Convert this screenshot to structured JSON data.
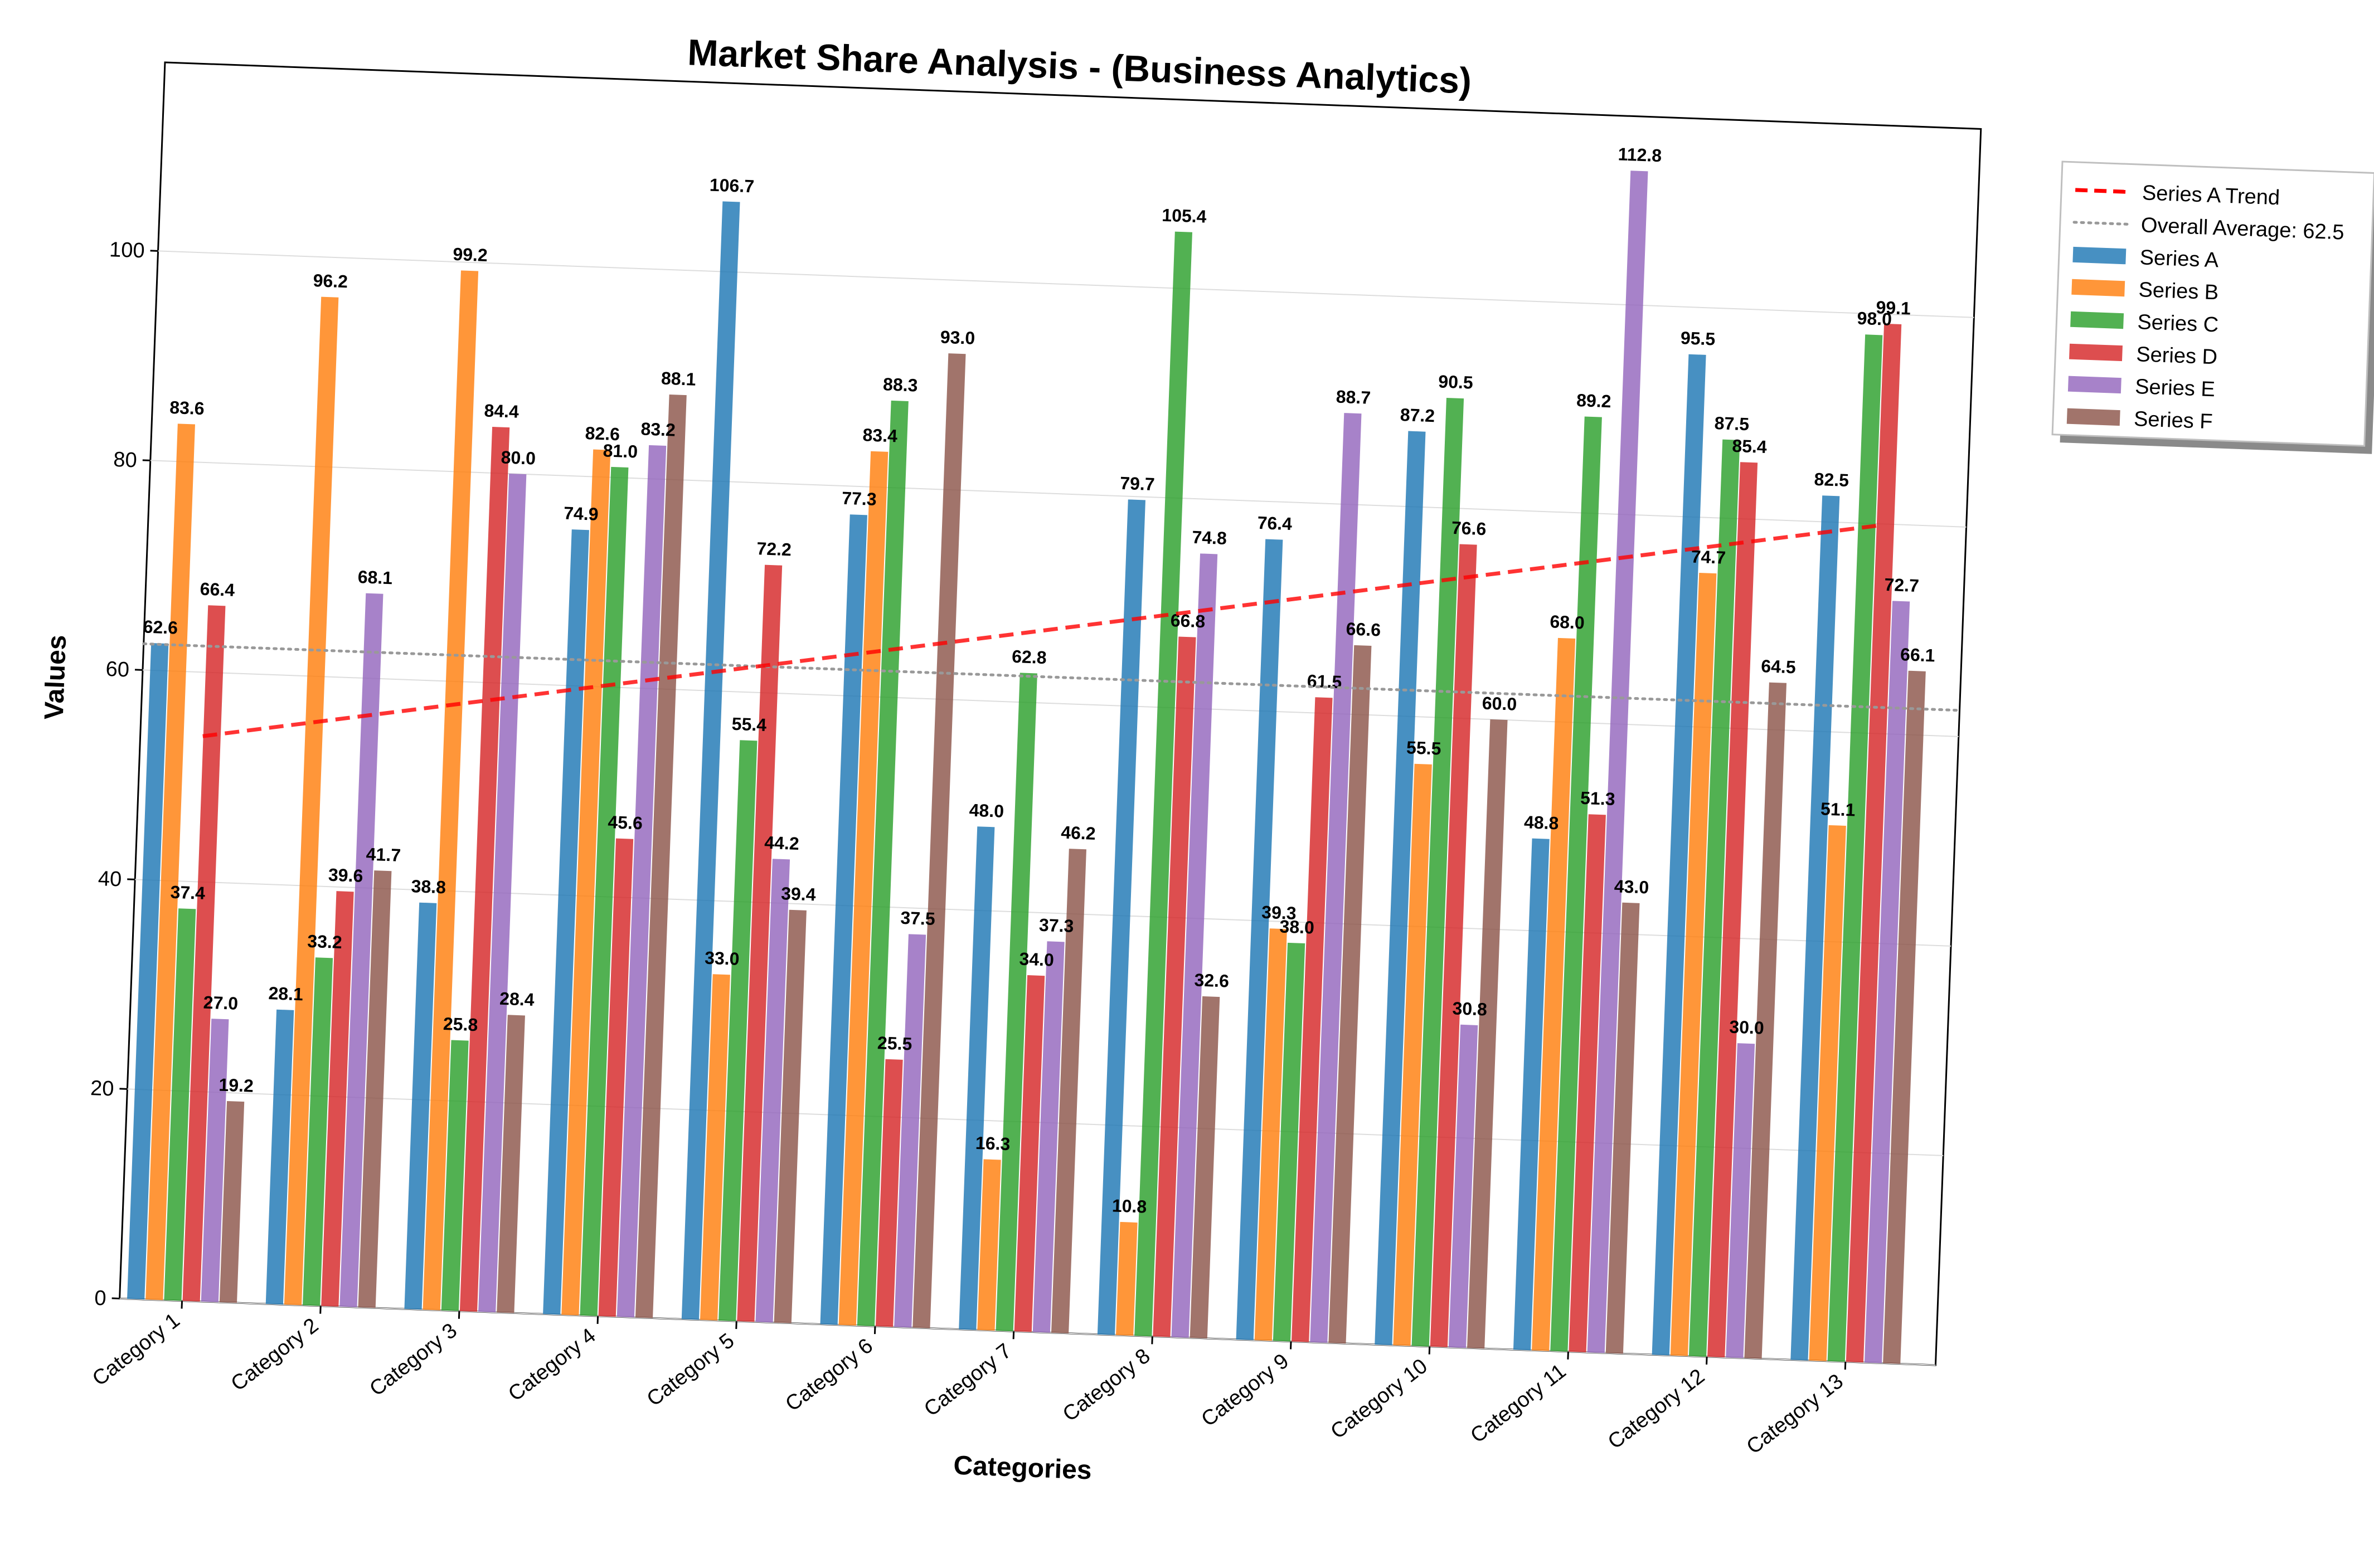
{
  "chart_data": {
    "type": "bar",
    "title": "Market Share Analysis - (Business Analytics)",
    "xlabel": "Categories",
    "ylabel": "Values",
    "ylim": [
      0,
      118
    ],
    "yticks": [
      0,
      20,
      40,
      60,
      80,
      100
    ],
    "grid": true,
    "legend_position": "outside top-right",
    "categories": [
      "Category 1",
      "Category 2",
      "Category 3",
      "Category 4",
      "Category 5",
      "Category 6",
      "Category 7",
      "Category 8",
      "Category 9",
      "Category 10",
      "Category 11",
      "Category 12",
      "Category 13"
    ],
    "series": [
      {
        "name": "Series A",
        "color": "#1f77b4",
        "values": [
          62.6,
          28.1,
          38.8,
          74.9,
          106.7,
          77.3,
          48.0,
          79.7,
          76.4,
          87.2,
          48.8,
          95.5,
          82.5
        ]
      },
      {
        "name": "Series B",
        "color": "#ff7f0e",
        "values": [
          83.6,
          96.2,
          99.2,
          82.6,
          33.0,
          83.4,
          16.3,
          10.8,
          39.3,
          55.5,
          68.0,
          74.7,
          51.1
        ]
      },
      {
        "name": "Series C",
        "color": "#2ca02c",
        "values": [
          37.4,
          33.2,
          25.8,
          81.0,
          55.4,
          88.3,
          62.8,
          105.4,
          38.0,
          90.5,
          89.2,
          87.5,
          98.0
        ]
      },
      {
        "name": "Series D",
        "color": "#d62728",
        "values": [
          66.4,
          39.6,
          84.4,
          45.6,
          72.2,
          25.5,
          34.0,
          66.8,
          61.5,
          76.6,
          51.3,
          85.4,
          99.1
        ]
      },
      {
        "name": "Series E",
        "color": "#9467bd",
        "values": [
          27.0,
          68.1,
          80.0,
          83.2,
          44.2,
          37.5,
          37.3,
          74.8,
          88.7,
          30.8,
          112.8,
          30.0,
          72.7
        ]
      },
      {
        "name": "Series F",
        "color": "#8c564b",
        "values": [
          19.2,
          41.7,
          28.4,
          88.1,
          39.4,
          93.0,
          46.2,
          32.6,
          66.6,
          60.0,
          43.0,
          64.5,
          66.1
        ]
      }
    ],
    "trend_line": {
      "name": "Series A Trend",
      "color": "#ff0000",
      "style": "dashed",
      "start": 53.9,
      "end": 79.8
    },
    "average_line": {
      "name": "Overall Average: 62.5",
      "value": 62.5,
      "color": "#999999",
      "style": "dotted"
    }
  }
}
